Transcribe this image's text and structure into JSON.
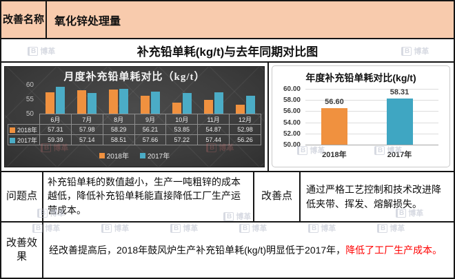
{
  "header": {
    "label": "改善名称",
    "title": "氧化锌处理量"
  },
  "section_title": "补充铅单耗(kg/t)与去年同期对比图",
  "watermark": {
    "text": "博革",
    "logo": "B"
  },
  "colors": {
    "orange_2018": "#F0913F",
    "teal_2017": "#4BACC6",
    "teal_2017_annual": "#3FA6C2",
    "header_bg": "#F8CBAD",
    "red_text": "#FF0000"
  },
  "chart_data": [
    {
      "type": "bar",
      "title": "月度补充铅单耗对比（kg/t）",
      "categories": [
        "6月",
        "7月",
        "8月",
        "9月",
        "10月",
        "11月",
        "12月"
      ],
      "series": [
        {
          "name": "2018年",
          "color": "#F0913F",
          "values": [
            57.31,
            57.98,
            58.29,
            56.21,
            53.85,
            54.87,
            52.98
          ]
        },
        {
          "name": "2017年",
          "color": "#4BACC6",
          "values": [
            59.39,
            57.14,
            58.51,
            57.66,
            57.22,
            57.44,
            56.26
          ]
        }
      ],
      "ylim": [
        50,
        60
      ],
      "yticks": [
        60,
        55,
        50
      ],
      "legend_position": "bottom",
      "data_table": true,
      "background": "dark"
    },
    {
      "type": "bar",
      "title": "年度补充铅单耗对比(kg/t)",
      "categories": [
        "2018年",
        "2017年"
      ],
      "values": [
        56.6,
        58.31
      ],
      "colors": [
        "#F0913F",
        "#3FA6C2"
      ],
      "data_labels": [
        "56.60",
        "58.31"
      ],
      "ylim": [
        50,
        60
      ],
      "yticks": [
        "60.00",
        "58.00",
        "56.00",
        "54.00",
        "52.00",
        "50.00"
      ],
      "grid": true,
      "legend_position": "none"
    }
  ],
  "problem": {
    "label": "问题点",
    "text": "补充铅单耗的数值越小，生产一吨粗锌的成本越低，降低补充铅单耗能直接降低工厂生产运营成本。"
  },
  "improvement": {
    "label": "改善点",
    "text": "通过严格工艺控制和技术改进降低夹带、挥发、熔解损失。"
  },
  "effect": {
    "label": "改善效果",
    "text_main": "经改善提高后，2018年鼓风炉生产补充铅单耗(kg/t)明显低于2017年，",
    "text_red": "降低了工厂生产成本。"
  }
}
